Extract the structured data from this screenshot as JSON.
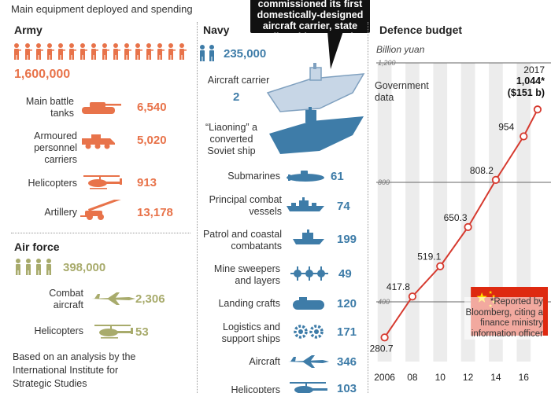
{
  "subtitle": "Main equipment deployed and spending",
  "callout": "commissioned its first domestically-designed aircraft carrier, state media said Wednesday",
  "army": {
    "title": "Army",
    "personnel": "1,600,000",
    "items": [
      {
        "label": "Main battle tanks",
        "value": "6,540",
        "icon": "tank-icon"
      },
      {
        "label": "Armoured personnel carriers",
        "value": "5,020",
        "icon": "armoured-carrier-icon"
      },
      {
        "label": "Helicopters",
        "value": "913",
        "icon": "helicopter-icon"
      },
      {
        "label": "Artillery",
        "value": "13,178",
        "icon": "artillery-icon"
      }
    ]
  },
  "airforce": {
    "title": "Air force",
    "personnel": "398,000",
    "items": [
      {
        "label": "Combat aircraft",
        "value": "2,306",
        "icon": "jet-icon"
      },
      {
        "label": "Helicopters",
        "value": "53",
        "icon": "helicopter-icon"
      }
    ]
  },
  "source_note": "Based on an analysis by the International Institute for Strategic Studies",
  "navy": {
    "title": "Navy",
    "personnel": "235,000",
    "carrier": {
      "label": "Aircraft carrier",
      "value": "2"
    },
    "liaoning": "“Liaoning” a converted Soviet ship",
    "items": [
      {
        "label": "Submarines",
        "value": "61",
        "icon": "submarine-icon"
      },
      {
        "label": "Principal combat vessels",
        "value": "74",
        "icon": "combat-vessel-icon"
      },
      {
        "label": "Patrol and coastal combatants",
        "value": "199",
        "icon": "patrol-boat-icon"
      },
      {
        "label": "Mine sweepers and layers",
        "value": "49",
        "icon": "mine-icon"
      },
      {
        "label": "Landing crafts",
        "value": "120",
        "icon": "landing-craft-icon"
      },
      {
        "label": "Logistics and support ships",
        "value": "171",
        "icon": "gear-icon"
      },
      {
        "label": "Aircraft",
        "value": "346",
        "icon": "jet-icon"
      },
      {
        "label": "Helicopters",
        "value": "103",
        "icon": "helicopter-icon"
      }
    ]
  },
  "budget": {
    "title": "Defence budget",
    "unit": "Billion yuan",
    "series_label": "Government data",
    "latest_year": "2017",
    "latest_value": "1,044*",
    "latest_usd": "($151 b)",
    "footnote": "*Reported by Bloomberg, citing a finance ministry information officer"
  },
  "chart_data": {
    "type": "line",
    "title": "Defence budget",
    "ylabel": "Billion yuan",
    "x": [
      2006,
      2008,
      2010,
      2012,
      2014,
      2016,
      2017
    ],
    "series": [
      {
        "name": "Government data",
        "values": [
          280.7,
          417.8,
          519.1,
          650.3,
          808.2,
          954,
          1044
        ]
      }
    ],
    "point_labels": [
      "280.7",
      "417.8",
      "519.1",
      "650.3",
      "808.2",
      "954",
      ""
    ],
    "xtick_labels": [
      "2006",
      "08",
      "10",
      "12",
      "14",
      "16"
    ],
    "xticks": [
      2006,
      2008,
      2010,
      2012,
      2014,
      2016
    ],
    "yticks": [
      400,
      800,
      1200
    ],
    "ytick_labels": [
      "400",
      "800",
      "1,200"
    ],
    "xlim": [
      2005.4,
      2017.4
    ],
    "ylim": [
      200,
      1200
    ],
    "grid": true,
    "colors": {
      "line": "#d63a2f",
      "flag": "#de2910",
      "star": "#ffde00"
    }
  }
}
